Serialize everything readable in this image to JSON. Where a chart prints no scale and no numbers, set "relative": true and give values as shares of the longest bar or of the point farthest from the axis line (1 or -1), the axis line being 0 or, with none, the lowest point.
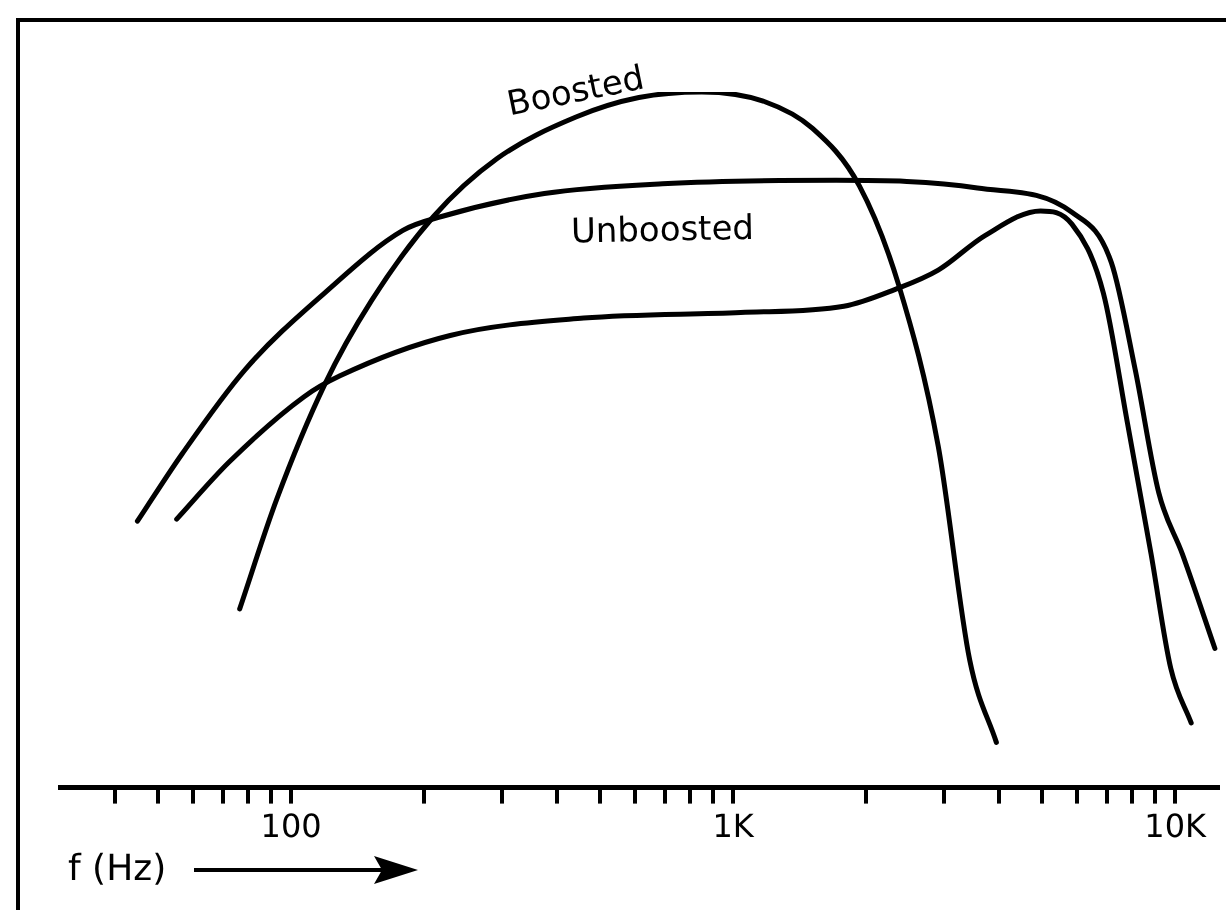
{
  "chart_data": {
    "type": "line",
    "relative": true,
    "log": "x",
    "xlabel": "f (Hz)",
    "legend": false,
    "grid": false,
    "marker": "none",
    "line_style": "solid",
    "xlim": [
      30,
      12500
    ],
    "xticks": [
      {
        "value": 40,
        "label": null
      },
      {
        "value": 50,
        "label": null
      },
      {
        "value": 60,
        "label": null
      },
      {
        "value": 70,
        "label": null
      },
      {
        "value": 80,
        "label": null
      },
      {
        "value": 90,
        "label": null
      },
      {
        "value": 100,
        "label": "100"
      },
      {
        "value": 200,
        "label": null
      },
      {
        "value": 300,
        "label": null
      },
      {
        "value": 400,
        "label": null
      },
      {
        "value": 500,
        "label": null
      },
      {
        "value": 600,
        "label": null
      },
      {
        "value": 700,
        "label": null
      },
      {
        "value": 800,
        "label": null
      },
      {
        "value": 900,
        "label": null
      },
      {
        "value": 1000,
        "label": "1K"
      },
      {
        "value": 2000,
        "label": null
      },
      {
        "value": 3000,
        "label": null
      },
      {
        "value": 4000,
        "label": null
      },
      {
        "value": 5000,
        "label": null
      },
      {
        "value": 6000,
        "label": null
      },
      {
        "value": 7000,
        "label": null
      },
      {
        "value": 8000,
        "label": null
      },
      {
        "value": 9000,
        "label": null
      },
      {
        "value": 10000,
        "label": "10K"
      }
    ],
    "series": [
      {
        "name": "Boosted",
        "color": "#000000",
        "x": [
          76.5,
          92.7,
          119,
          152,
          210,
          292,
          441,
          612,
          849,
          1180,
          1510,
          1930,
          2370,
          2910,
          3430,
          3940
        ],
        "values": [
          0.257,
          0.414,
          0.579,
          0.7,
          0.821,
          0.904,
          0.964,
          0.992,
          1,
          0.986,
          0.948,
          0.865,
          0.722,
          0.491,
          0.183,
          0.065
        ]
      },
      {
        "name": "Unboosted",
        "color": "#000000",
        "x": [
          44.9,
          56.7,
          78.7,
          119,
          179,
          219,
          374,
          692,
          1710,
          3570,
          5840,
          7170,
          8120,
          9180,
          10380,
          12300
        ],
        "values": [
          0.383,
          0.48,
          0.601,
          0.711,
          0.801,
          0.821,
          0.854,
          0.868,
          0.873,
          0.862,
          0.827,
          0.755,
          0.601,
          0.424,
          0.336,
          0.2
        ]
      },
      {
        "color": "#000000",
        "x": [
          55.1,
          72.4,
          107,
          129,
          229,
          459,
          1040,
          1780,
          2320,
          2910,
          3720,
          4960,
          5840,
          6880,
          7800,
          8820,
          9770,
          10870
        ],
        "values": [
          0.386,
          0.468,
          0.562,
          0.592,
          0.65,
          0.675,
          0.683,
          0.692,
          0.716,
          0.744,
          0.794,
          0.829,
          0.81,
          0.711,
          0.524,
          0.336,
          0.172,
          0.093
        ]
      }
    ]
  }
}
